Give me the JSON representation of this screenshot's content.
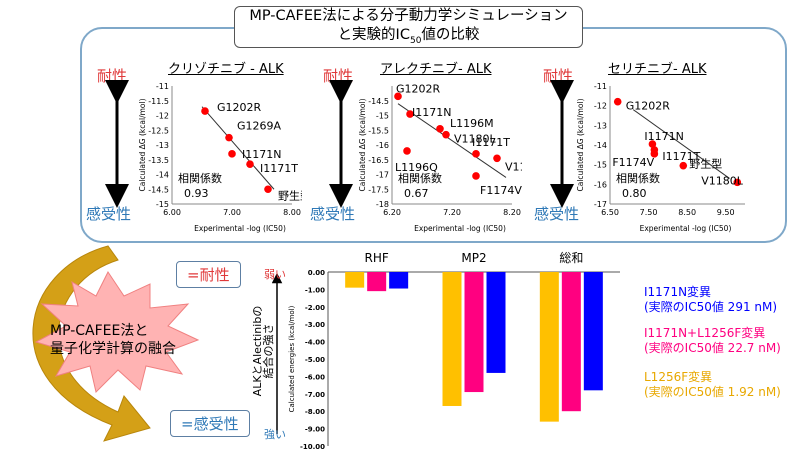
{
  "title": {
    "line1": "MP-CAFEE法による分子動力学シミュレーション",
    "line2": "と実験的IC",
    "line2_sub": "50",
    "line2_end": "値の比較"
  },
  "labels": {
    "resistance": "耐性",
    "sensitivity": "感受性",
    "fusion_line1": "MP-CAFEE法と",
    "fusion_line2": "量子化学計算の融合",
    "resistance_box": "=耐性",
    "sensitivity_box": "=感受性",
    "weak": "弱い",
    "strong": "強い",
    "binding_axis_line1": "ALKとAlectinibの",
    "binding_axis_line2": "結合の強さ"
  },
  "colors": {
    "red": "#e0393a",
    "blue_label": "#2f79b7",
    "panel_border": "#7fa8c9",
    "point": "#ff0000",
    "L1256F": "#ffc000",
    "I1171N_L1256F": "#ff0080",
    "I1171N": "#0000ff",
    "arrow_gold": "#d4a017",
    "burst": "#ffb3b3"
  },
  "scatter_charts": [
    {
      "title": "クリゾチニブ - ALK",
      "xlabel": "Experimental -log (IC50)",
      "ylabel": "Calculated ΔG (kcal/mol)",
      "xlim": [
        6.0,
        8.0
      ],
      "ylim": [
        -15,
        -11
      ],
      "xticks": [
        "6.00",
        "7.00",
        "8.00"
      ],
      "xtick_values": [
        6.0,
        7.0,
        8.0
      ],
      "yticks": [
        -11,
        -11.5,
        -12,
        -12.5,
        -13,
        -13.5,
        -14,
        -14.5,
        -15
      ],
      "ytick_labels": [
        "-11",
        "-11.5",
        "-12",
        "-12.5",
        "-13",
        "-13.5",
        "-14",
        "-14.5",
        "-15"
      ],
      "points": [
        {
          "label": "G1202R",
          "x": 6.55,
          "y": -11.85
        },
        {
          "label": "G1269A",
          "x": 6.95,
          "y": -12.75
        },
        {
          "label": "I1171N",
          "x": 7.0,
          "y": -13.3
        },
        {
          "label": "I1171T",
          "x": 7.3,
          "y": -13.65
        },
        {
          "label": "野生型",
          "x": 7.6,
          "y": -14.5
        }
      ],
      "trend": [
        [
          6.5,
          -11.7
        ],
        [
          7.7,
          -14.5
        ]
      ],
      "corr_label": "相関係数",
      "corr_value": "0.93"
    },
    {
      "title": "アレクチニブ- ALK",
      "xlabel": "Experimental -log (IC50)",
      "ylabel": "Calculated ΔG (kcal/mol)",
      "xlim": [
        6.2,
        8.2
      ],
      "ylim": [
        -18,
        -14
      ],
      "xticks": [
        "6.20",
        "7.20",
        "8.20"
      ],
      "xtick_values": [
        6.2,
        7.2,
        8.2
      ],
      "yticks": [
        -14.5,
        -15,
        -15.5,
        -16,
        -16.5,
        -17,
        -17.5,
        -18
      ],
      "ytick_labels": [
        "-14.5",
        "-15",
        "-15.5",
        "-16",
        "-16.5",
        "-17",
        "-17.5",
        "-18"
      ],
      "points": [
        {
          "label": "G1202R",
          "x": 6.3,
          "y": -14.35
        },
        {
          "label": "I1171N",
          "x": 6.5,
          "y": -14.95
        },
        {
          "label": "L1196M",
          "x": 7.0,
          "y": -15.45
        },
        {
          "label": "V1180L",
          "x": 7.1,
          "y": -15.65
        },
        {
          "label": "I1171T",
          "x": 7.6,
          "y": -16.3
        },
        {
          "label": "L1196Q",
          "x": 6.45,
          "y": -16.2
        },
        {
          "label": "V1185L",
          "x": 7.95,
          "y": -16.45
        },
        {
          "label": "F1174V",
          "x": 7.6,
          "y": -17.05
        }
      ],
      "trend": [
        [
          6.3,
          -14.6
        ],
        [
          8.1,
          -17.1
        ]
      ],
      "corr_label": "相関係数",
      "corr_value": "0.67"
    },
    {
      "title": "セリチニブ- ALK",
      "xlabel": "Experimental -log (IC50)",
      "ylabel": "Calculated ΔG (kcal/mol)",
      "xlim": [
        6.5,
        10.0
      ],
      "ylim": [
        -17,
        -11
      ],
      "xticks": [
        "6.50",
        "7.50",
        "8.50",
        "9.50"
      ],
      "xtick_values": [
        6.5,
        7.5,
        8.5,
        9.5
      ],
      "yticks": [
        -11,
        -12,
        -13,
        -14,
        -15,
        -16,
        -17
      ],
      "ytick_labels": [
        "-11",
        "-12",
        "-13",
        "-14",
        "-15",
        "-16",
        "-17"
      ],
      "points": [
        {
          "label": "G1202R",
          "x": 6.7,
          "y": -11.8
        },
        {
          "label": "I1171N",
          "x": 7.6,
          "y": -13.95
        },
        {
          "label": "I1171T",
          "x": 7.65,
          "y": -14.25
        },
        {
          "label": "F1174V",
          "x": 7.65,
          "y": -14.45
        },
        {
          "label": "野生型",
          "x": 8.4,
          "y": -15.05
        },
        {
          "label": "V1180L",
          "x": 9.8,
          "y": -15.9
        }
      ],
      "trend": [
        [
          7.1,
          -12.2
        ],
        [
          9.6,
          -15.7
        ]
      ],
      "corr_label": "相関係数",
      "corr_value": "0.80"
    }
  ],
  "chart_data": {
    "type": "bar",
    "categories": [
      "RHF",
      "MP2",
      "総和"
    ],
    "ylabel": "Calculated energies (kcal/mol)",
    "ylim": [
      -10,
      0
    ],
    "yticks": [
      "0.00",
      "-1.00",
      "-2.00",
      "-3.00",
      "-4.00",
      "-5.00",
      "-6.00",
      "-7.00",
      "-8.00",
      "-9.00",
      "-10.00"
    ],
    "series": [
      {
        "name": "L1256F変異",
        "name_sub": "(実際のIC50値 1.92 nM)",
        "values": [
          -0.9,
          -7.7,
          -8.6
        ]
      },
      {
        "name": "I1171N+L1256F変異",
        "name_sub": "(実際のIC50値 22.7 nM)",
        "values": [
          -1.1,
          -6.9,
          -8.0
        ]
      },
      {
        "name": "I1171N変異",
        "name_sub": "(実際のIC50値 291 nM)",
        "values": [
          -0.95,
          -5.8,
          -6.8
        ]
      }
    ],
    "legend_position": "right"
  }
}
